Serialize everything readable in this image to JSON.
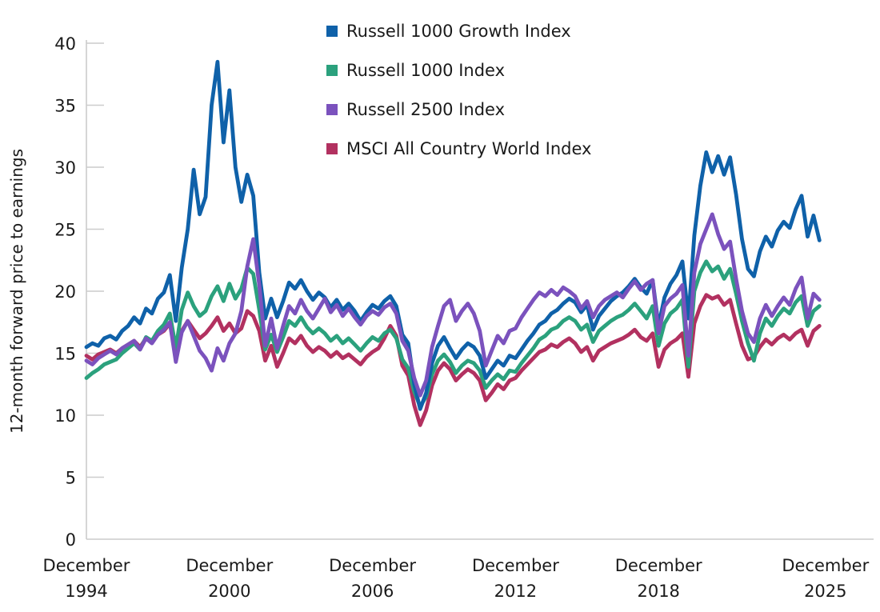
{
  "chart_data": {
    "type": "line",
    "title": "",
    "xlabel": "",
    "ylabel": "12-month forward price to earnings",
    "ylim": [
      0,
      40
    ],
    "y_ticks": [
      0,
      5,
      10,
      15,
      20,
      25,
      30,
      35,
      40
    ],
    "x_unit": "years since December 1994",
    "x_start": 0,
    "x_step": 0.25,
    "x_ticks": [
      {
        "t": 0,
        "line1": "December",
        "line2": "1994"
      },
      {
        "t": 6,
        "line1": "December",
        "line2": "2000"
      },
      {
        "t": 12,
        "line1": "December",
        "line2": "2006"
      },
      {
        "t": 18,
        "line1": "December",
        "line2": "2012"
      },
      {
        "t": 24,
        "line1": "December",
        "line2": "2018"
      },
      {
        "t": 31,
        "line1": "December",
        "line2": "2025"
      }
    ],
    "grid": false,
    "legend_position": "top-center-inside",
    "draw_order_indices": [
      3,
      1,
      0,
      2
    ],
    "style": {
      "axis_color": "#cccccc",
      "tick_text_color": "#1a1a1a",
      "background_color": "#ffffff",
      "line_width": 4.8
    },
    "series": [
      {
        "name": "Russell 1000 Growth Index",
        "color": "#0f61a9",
        "values": [
          15.5,
          15.8,
          15.6,
          16.2,
          16.4,
          16.1,
          16.8,
          17.2,
          17.9,
          17.4,
          18.6,
          18.2,
          19.4,
          19.9,
          21.3,
          17.6,
          21.9,
          25.0,
          29.8,
          26.2,
          27.6,
          35.0,
          38.5,
          32.0,
          36.2,
          30.0,
          27.2,
          29.4,
          27.7,
          21.5,
          17.8,
          19.4,
          17.9,
          19.2,
          20.7,
          20.2,
          20.9,
          20.0,
          19.3,
          19.9,
          19.5,
          18.7,
          19.3,
          18.5,
          19.0,
          18.4,
          17.6,
          18.3,
          18.9,
          18.6,
          19.2,
          19.6,
          18.8,
          16.5,
          15.8,
          12.5,
          10.5,
          11.8,
          14.2,
          15.6,
          16.3,
          15.4,
          14.6,
          15.3,
          15.8,
          15.5,
          14.8,
          13.0,
          13.7,
          14.4,
          14.0,
          14.8,
          14.6,
          15.3,
          16.0,
          16.6,
          17.3,
          17.6,
          18.2,
          18.5,
          19.0,
          19.4,
          19.1,
          18.3,
          18.9,
          16.9,
          18.0,
          18.6,
          19.2,
          19.6,
          19.9,
          20.4,
          21.0,
          20.3,
          19.8,
          20.9,
          17.2,
          19.5,
          20.6,
          21.3,
          22.4,
          17.8,
          24.5,
          28.5,
          31.2,
          29.6,
          30.9,
          29.4,
          30.8,
          27.8,
          24.2,
          21.8,
          21.2,
          23.2,
          24.4,
          23.6,
          24.9,
          25.6,
          25.1,
          26.6,
          27.7,
          24.4,
          26.1,
          24.1
        ]
      },
      {
        "name": "Russell 1000 Index",
        "color": "#2ba17d",
        "values": [
          13.0,
          13.4,
          13.7,
          14.1,
          14.3,
          14.5,
          15.0,
          15.4,
          15.8,
          15.3,
          16.3,
          16.0,
          16.8,
          17.3,
          18.2,
          15.4,
          18.5,
          19.9,
          18.8,
          18.0,
          18.4,
          19.6,
          20.4,
          19.2,
          20.6,
          19.4,
          20.2,
          21.9,
          21.4,
          18.5,
          15.3,
          16.5,
          15.1,
          16.3,
          17.6,
          17.2,
          17.9,
          17.1,
          16.6,
          17.0,
          16.6,
          16.0,
          16.4,
          15.8,
          16.2,
          15.7,
          15.2,
          15.8,
          16.3,
          16.0,
          16.6,
          16.9,
          16.2,
          14.5,
          13.8,
          11.9,
          10.7,
          11.5,
          13.3,
          14.4,
          14.9,
          14.3,
          13.4,
          14.0,
          14.4,
          14.2,
          13.6,
          12.2,
          12.8,
          13.3,
          12.9,
          13.6,
          13.5,
          14.2,
          14.8,
          15.4,
          16.1,
          16.4,
          16.9,
          17.1,
          17.6,
          17.9,
          17.6,
          16.9,
          17.3,
          15.9,
          16.8,
          17.2,
          17.6,
          17.9,
          18.1,
          18.5,
          19.0,
          18.4,
          17.8,
          18.8,
          15.6,
          17.4,
          18.2,
          18.6,
          19.3,
          13.9,
          20.0,
          21.5,
          22.4,
          21.6,
          22.0,
          21.0,
          21.8,
          19.8,
          17.6,
          15.8,
          14.4,
          16.6,
          17.8,
          17.2,
          18.0,
          18.6,
          18.2,
          19.1,
          19.6,
          17.2,
          18.4,
          18.8
        ]
      },
      {
        "name": "Russell 2500 Index",
        "color": "#7b52bd",
        "values": [
          14.4,
          14.1,
          14.6,
          14.9,
          15.2,
          14.9,
          15.4,
          15.7,
          16.0,
          15.3,
          16.2,
          15.8,
          16.5,
          16.9,
          17.5,
          14.3,
          16.7,
          17.6,
          16.4,
          15.2,
          14.6,
          13.6,
          15.4,
          14.4,
          15.8,
          16.6,
          18.4,
          22.0,
          24.2,
          20.5,
          15.6,
          17.8,
          15.4,
          17.2,
          18.8,
          18.2,
          19.3,
          18.4,
          17.8,
          18.6,
          19.4,
          18.3,
          18.9,
          18.0,
          18.6,
          17.9,
          17.3,
          18.0,
          18.4,
          18.1,
          18.7,
          19.0,
          18.2,
          16.0,
          15.2,
          13.0,
          11.6,
          12.8,
          15.5,
          17.2,
          18.8,
          19.3,
          17.6,
          18.4,
          19.0,
          18.2,
          16.8,
          14.0,
          15.2,
          16.4,
          15.8,
          16.8,
          17.0,
          17.9,
          18.6,
          19.3,
          19.9,
          19.6,
          20.1,
          19.7,
          20.3,
          20.0,
          19.6,
          18.6,
          19.2,
          17.9,
          18.8,
          19.3,
          19.6,
          19.9,
          19.5,
          20.2,
          20.8,
          20.1,
          20.6,
          20.9,
          16.6,
          18.8,
          19.4,
          19.8,
          20.5,
          14.8,
          21.5,
          23.8,
          25.0,
          26.2,
          24.6,
          23.4,
          24.0,
          21.0,
          18.4,
          16.6,
          15.9,
          17.8,
          18.9,
          18.0,
          18.8,
          19.5,
          18.9,
          20.2,
          21.1,
          17.8,
          19.8,
          19.3
        ]
      },
      {
        "name": "MSCI All Country World Index",
        "color": "#b23160",
        "values": [
          14.8,
          14.5,
          14.9,
          15.1,
          15.3,
          15.0,
          15.4,
          15.7,
          16.0,
          15.5,
          16.2,
          15.9,
          16.5,
          16.8,
          17.4,
          14.9,
          16.8,
          17.6,
          16.9,
          16.2,
          16.6,
          17.2,
          17.9,
          16.8,
          17.4,
          16.6,
          17.0,
          18.4,
          18.0,
          16.8,
          14.4,
          15.6,
          13.9,
          15.0,
          16.2,
          15.8,
          16.4,
          15.6,
          15.1,
          15.5,
          15.2,
          14.7,
          15.1,
          14.6,
          14.9,
          14.5,
          14.1,
          14.7,
          15.1,
          15.4,
          16.2,
          17.2,
          16.4,
          14.0,
          13.2,
          10.8,
          9.2,
          10.4,
          12.4,
          13.6,
          14.2,
          13.7,
          12.8,
          13.3,
          13.7,
          13.4,
          12.8,
          11.2,
          11.8,
          12.5,
          12.1,
          12.8,
          13.0,
          13.6,
          14.1,
          14.6,
          15.1,
          15.3,
          15.7,
          15.5,
          15.9,
          16.2,
          15.8,
          15.1,
          15.5,
          14.4,
          15.2,
          15.5,
          15.8,
          16.0,
          16.2,
          16.5,
          16.9,
          16.3,
          16.0,
          16.6,
          13.9,
          15.3,
          15.8,
          16.1,
          16.6,
          13.1,
          17.4,
          18.8,
          19.7,
          19.4,
          19.6,
          18.9,
          19.3,
          17.4,
          15.6,
          14.5,
          14.7,
          15.5,
          16.1,
          15.7,
          16.2,
          16.5,
          16.1,
          16.6,
          16.9,
          15.6,
          16.8,
          17.2
        ]
      }
    ]
  }
}
